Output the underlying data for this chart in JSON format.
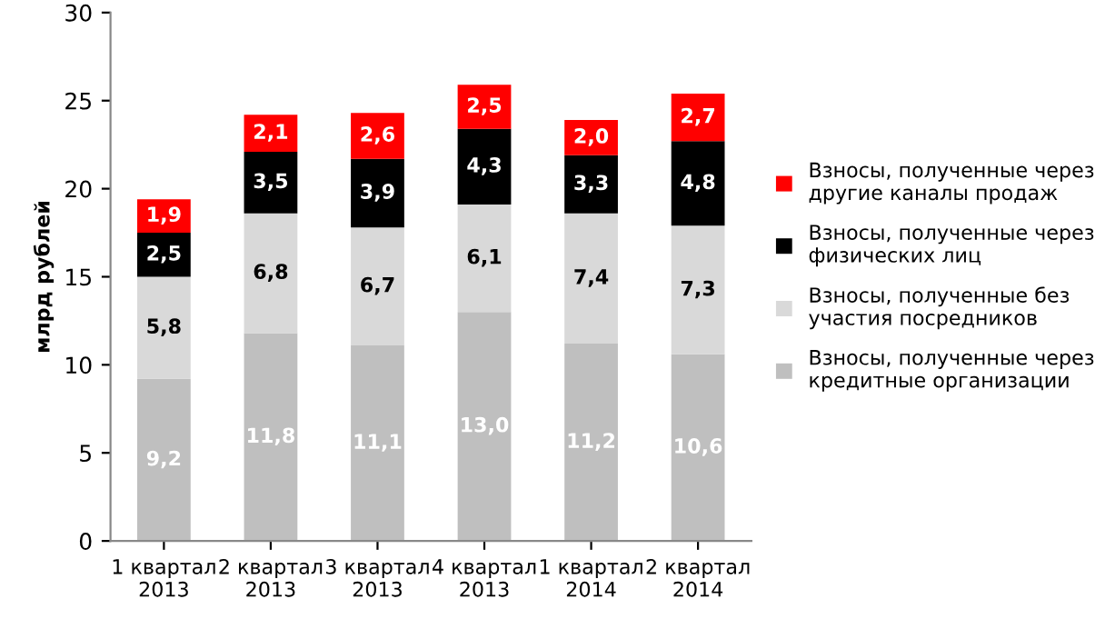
{
  "chart_data": {
    "type": "bar",
    "stacked": true,
    "ylabel": "млрд рублей",
    "categories": [
      "1 квартал\n2013",
      "2 квартал\n2013",
      "3 квартал\n2013",
      "4 квартал\n2013",
      "1 квартал\n2014",
      "2 квартал\n2014"
    ],
    "series": [
      {
        "name": "Взносы, полученные через\nкредитные организации",
        "color": "#bfbfbf",
        "values": [
          9.2,
          11.8,
          11.1,
          13.0,
          11.2,
          10.6
        ],
        "value_labels": [
          "9,2",
          "11,8",
          "11,1",
          "13,0",
          "11,2",
          "10,6"
        ]
      },
      {
        "name": "Взносы, полученные без\nучастия посредников",
        "color": "#d9d9d9",
        "values": [
          5.8,
          6.8,
          6.7,
          6.1,
          7.4,
          7.3
        ],
        "value_labels": [
          "5,8",
          "6,8",
          "6,7",
          "6,1",
          "7,4",
          "7,3"
        ]
      },
      {
        "name": "Взносы, полученные через\nфизических лиц",
        "color": "#000000",
        "values": [
          2.5,
          3.5,
          3.9,
          4.3,
          3.3,
          4.8
        ],
        "value_labels": [
          "2,5",
          "3,5",
          "3,9",
          "4,3",
          "3,3",
          "4,8"
        ]
      },
      {
        "name": "Взносы, полученные через\nдругие каналы продаж",
        "color": "#ff0000",
        "values": [
          1.9,
          2.1,
          2.6,
          2.5,
          2.0,
          2.7
        ],
        "value_labels": [
          "1,9",
          "2,1",
          "2,6",
          "2,5",
          "2,0",
          "2,7"
        ]
      }
    ],
    "ylim": [
      0,
      30
    ],
    "yticks": [
      0,
      5,
      10,
      15,
      20,
      25,
      30
    ],
    "grid": false,
    "legend": "right"
  }
}
